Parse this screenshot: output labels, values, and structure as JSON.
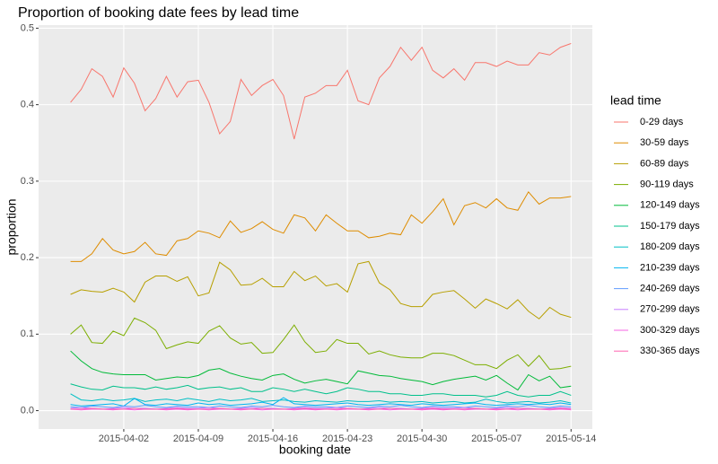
{
  "chart_data": {
    "type": "line",
    "title": "Proportion of booking date fees by lead time",
    "x_label": "booking date",
    "y_label": "proportion",
    "legend_title": "lead time",
    "grid": true,
    "x": [
      "2015-03-28",
      "2015-03-29",
      "2015-03-30",
      "2015-03-31",
      "2015-04-01",
      "2015-04-02",
      "2015-04-03",
      "2015-04-04",
      "2015-04-05",
      "2015-04-06",
      "2015-04-07",
      "2015-04-08",
      "2015-04-09",
      "2015-04-10",
      "2015-04-11",
      "2015-04-12",
      "2015-04-13",
      "2015-04-14",
      "2015-04-15",
      "2015-04-16",
      "2015-04-17",
      "2015-04-18",
      "2015-04-19",
      "2015-04-20",
      "2015-04-21",
      "2015-04-22",
      "2015-04-23",
      "2015-04-24",
      "2015-04-25",
      "2015-04-26",
      "2015-04-27",
      "2015-04-28",
      "2015-04-29",
      "2015-04-30",
      "2015-05-01",
      "2015-05-02",
      "2015-05-03",
      "2015-05-04",
      "2015-05-05",
      "2015-05-06",
      "2015-05-07",
      "2015-05-08",
      "2015-05-09",
      "2015-05-10",
      "2015-05-11",
      "2015-05-12",
      "2015-05-13",
      "2015-05-14"
    ],
    "xlim": [
      "2015-03-25",
      "2015-05-16"
    ],
    "xticks": [
      "2015-04-02",
      "2015-04-09",
      "2015-04-16",
      "2015-04-23",
      "2015-04-30",
      "2015-05-07",
      "2015-05-14"
    ],
    "ylim": [
      -0.024,
      0.504
    ],
    "yticks": [
      {
        "value": 0,
        "label": "0.0"
      },
      0.1,
      0.2,
      0.3,
      0.4,
      0.5
    ],
    "series": [
      {
        "name": "0-29 days",
        "color": "#F8766D",
        "values": [
          0.403,
          0.42,
          0.447,
          0.437,
          0.41,
          0.448,
          0.428,
          0.392,
          0.408,
          0.437,
          0.41,
          0.43,
          0.432,
          0.403,
          0.362,
          0.378,
          0.433,
          0.412,
          0.425,
          0.433,
          0.412,
          0.355,
          0.41,
          0.415,
          0.425,
          0.425,
          0.445,
          0.405,
          0.4,
          0.435,
          0.45,
          0.475,
          0.458,
          0.475,
          0.445,
          0.435,
          0.447,
          0.432,
          0.455,
          0.455,
          0.45,
          0.457,
          0.452,
          0.452,
          0.468,
          0.465,
          0.475,
          0.48
        ]
      },
      {
        "name": "30-59 days",
        "color": "#DE8C00",
        "values": [
          0.195,
          0.195,
          0.205,
          0.225,
          0.21,
          0.205,
          0.208,
          0.22,
          0.205,
          0.203,
          0.222,
          0.225,
          0.235,
          0.232,
          0.226,
          0.248,
          0.233,
          0.238,
          0.247,
          0.237,
          0.232,
          0.256,
          0.252,
          0.235,
          0.256,
          0.245,
          0.235,
          0.235,
          0.226,
          0.228,
          0.232,
          0.23,
          0.256,
          0.245,
          0.26,
          0.277,
          0.243,
          0.268,
          0.272,
          0.265,
          0.277,
          0.265,
          0.262,
          0.286,
          0.27,
          0.278,
          0.278,
          0.28
        ]
      },
      {
        "name": "60-89 days",
        "color": "#B79F00",
        "values": [
          0.152,
          0.158,
          0.156,
          0.155,
          0.16,
          0.155,
          0.142,
          0.168,
          0.176,
          0.176,
          0.169,
          0.175,
          0.15,
          0.154,
          0.194,
          0.184,
          0.164,
          0.165,
          0.173,
          0.162,
          0.162,
          0.182,
          0.17,
          0.176,
          0.163,
          0.166,
          0.155,
          0.192,
          0.195,
          0.167,
          0.158,
          0.14,
          0.136,
          0.136,
          0.152,
          0.155,
          0.157,
          0.146,
          0.134,
          0.146,
          0.14,
          0.133,
          0.145,
          0.13,
          0.12,
          0.135,
          0.126,
          0.122
        ]
      },
      {
        "name": "90-119 days",
        "color": "#7CAE00",
        "values": [
          0.1,
          0.112,
          0.089,
          0.088,
          0.104,
          0.098,
          0.121,
          0.115,
          0.105,
          0.081,
          0.086,
          0.09,
          0.088,
          0.104,
          0.111,
          0.095,
          0.087,
          0.089,
          0.075,
          0.076,
          0.093,
          0.112,
          0.09,
          0.076,
          0.078,
          0.093,
          0.088,
          0.088,
          0.074,
          0.078,
          0.073,
          0.07,
          0.069,
          0.069,
          0.075,
          0.075,
          0.072,
          0.066,
          0.06,
          0.06,
          0.055,
          0.066,
          0.073,
          0.058,
          0.072,
          0.054,
          0.055,
          0.058
        ]
      },
      {
        "name": "120-149 days",
        "color": "#00BA38",
        "values": [
          0.078,
          0.065,
          0.055,
          0.05,
          0.048,
          0.047,
          0.047,
          0.047,
          0.04,
          0.042,
          0.044,
          0.043,
          0.046,
          0.053,
          0.055,
          0.049,
          0.045,
          0.042,
          0.04,
          0.046,
          0.048,
          0.041,
          0.036,
          0.039,
          0.041,
          0.038,
          0.035,
          0.052,
          0.049,
          0.046,
          0.045,
          0.042,
          0.04,
          0.038,
          0.034,
          0.038,
          0.041,
          0.043,
          0.045,
          0.04,
          0.046,
          0.036,
          0.027,
          0.047,
          0.039,
          0.045,
          0.03,
          0.032
        ]
      },
      {
        "name": "150-179 days",
        "color": "#00C08B",
        "values": [
          0.035,
          0.031,
          0.028,
          0.027,
          0.032,
          0.03,
          0.03,
          0.028,
          0.031,
          0.028,
          0.03,
          0.033,
          0.028,
          0.03,
          0.031,
          0.028,
          0.03,
          0.025,
          0.025,
          0.03,
          0.028,
          0.025,
          0.028,
          0.025,
          0.022,
          0.025,
          0.03,
          0.028,
          0.025,
          0.025,
          0.022,
          0.022,
          0.02,
          0.02,
          0.022,
          0.022,
          0.02,
          0.02,
          0.02,
          0.018,
          0.02,
          0.025,
          0.02,
          0.018,
          0.02,
          0.02,
          0.025,
          0.02
        ]
      },
      {
        "name": "180-209 days",
        "color": "#00BFC4",
        "values": [
          0.022,
          0.014,
          0.013,
          0.015,
          0.013,
          0.014,
          0.016,
          0.012,
          0.014,
          0.015,
          0.013,
          0.016,
          0.014,
          0.012,
          0.015,
          0.013,
          0.014,
          0.016,
          0.012,
          0.013,
          0.014,
          0.012,
          0.011,
          0.013,
          0.012,
          0.011,
          0.013,
          0.012,
          0.012,
          0.013,
          0.011,
          0.012,
          0.011,
          0.012,
          0.01,
          0.011,
          0.012,
          0.01,
          0.011,
          0.015,
          0.012,
          0.01,
          0.011,
          0.012,
          0.01,
          0.011,
          0.013,
          0.01
        ]
      },
      {
        "name": "210-239 days",
        "color": "#00B4F0",
        "values": [
          0.008,
          0.006,
          0.007,
          0.008,
          0.009,
          0.006,
          0.016,
          0.008,
          0.007,
          0.009,
          0.008,
          0.007,
          0.01,
          0.008,
          0.009,
          0.007,
          0.008,
          0.009,
          0.011,
          0.008,
          0.017,
          0.009,
          0.008,
          0.007,
          0.008,
          0.009,
          0.01,
          0.008,
          0.007,
          0.008,
          0.009,
          0.008,
          0.007,
          0.009,
          0.008,
          0.007,
          0.008,
          0.009,
          0.01,
          0.008,
          0.007,
          0.008,
          0.009,
          0.008,
          0.009,
          0.008,
          0.01,
          0.008
        ]
      },
      {
        "name": "240-269 days",
        "color": "#619CFF",
        "values": [
          0.005,
          0.004,
          0.006,
          0.005,
          0.004,
          0.006,
          0.005,
          0.007,
          0.005,
          0.004,
          0.006,
          0.005,
          0.005,
          0.004,
          0.006,
          0.005,
          0.004,
          0.006,
          0.005,
          0.007,
          0.005,
          0.004,
          0.006,
          0.005,
          0.005,
          0.004,
          0.006,
          0.005,
          0.004,
          0.006,
          0.005,
          0.007,
          0.005,
          0.004,
          0.006,
          0.005,
          0.005,
          0.004,
          0.006,
          0.005,
          0.004,
          0.006,
          0.005,
          0.007,
          0.005,
          0.004,
          0.006,
          0.005
        ]
      },
      {
        "name": "270-299 days",
        "color": "#C77CFF",
        "values": [
          0.003,
          0.004,
          0.003,
          0.002,
          0.003,
          0.004,
          0.003,
          0.003,
          0.002,
          0.003,
          0.004,
          0.003,
          0.003,
          0.004,
          0.003,
          0.002,
          0.003,
          0.004,
          0.003,
          0.003,
          0.002,
          0.003,
          0.004,
          0.003,
          0.003,
          0.004,
          0.003,
          0.002,
          0.003,
          0.004,
          0.003,
          0.003,
          0.002,
          0.003,
          0.004,
          0.003,
          0.003,
          0.004,
          0.003,
          0.002,
          0.003,
          0.004,
          0.003,
          0.003,
          0.002,
          0.003,
          0.004,
          0.003
        ]
      },
      {
        "name": "300-329 days",
        "color": "#F564E3",
        "values": [
          0.002,
          0.001,
          0.002,
          0.002,
          0.001,
          0.002,
          0.001,
          0.002,
          0.002,
          0.001,
          0.002,
          0.001,
          0.002,
          0.001,
          0.002,
          0.002,
          0.001,
          0.002,
          0.001,
          0.002,
          0.002,
          0.001,
          0.002,
          0.001,
          0.002,
          0.001,
          0.002,
          0.002,
          0.001,
          0.002,
          0.001,
          0.002,
          0.002,
          0.001,
          0.002,
          0.001,
          0.002,
          0.001,
          0.002,
          0.002,
          0.001,
          0.002,
          0.001,
          0.002,
          0.002,
          0.001,
          0.002,
          0.001
        ]
      },
      {
        "name": "330-365 days",
        "color": "#FF64B0",
        "values": [
          0.002,
          0.002,
          0.003,
          0.002,
          0.002,
          0.002,
          0.003,
          0.002,
          0.002,
          0.002,
          0.003,
          0.002,
          0.002,
          0.002,
          0.003,
          0.002,
          0.002,
          0.002,
          0.003,
          0.002,
          0.002,
          0.002,
          0.003,
          0.002,
          0.002,
          0.002,
          0.003,
          0.002,
          0.002,
          0.002,
          0.003,
          0.002,
          0.002,
          0.002,
          0.003,
          0.002,
          0.002,
          0.002,
          0.003,
          0.002,
          0.002,
          0.002,
          0.003,
          0.002,
          0.002,
          0.002,
          0.003,
          0.002
        ]
      }
    ]
  }
}
